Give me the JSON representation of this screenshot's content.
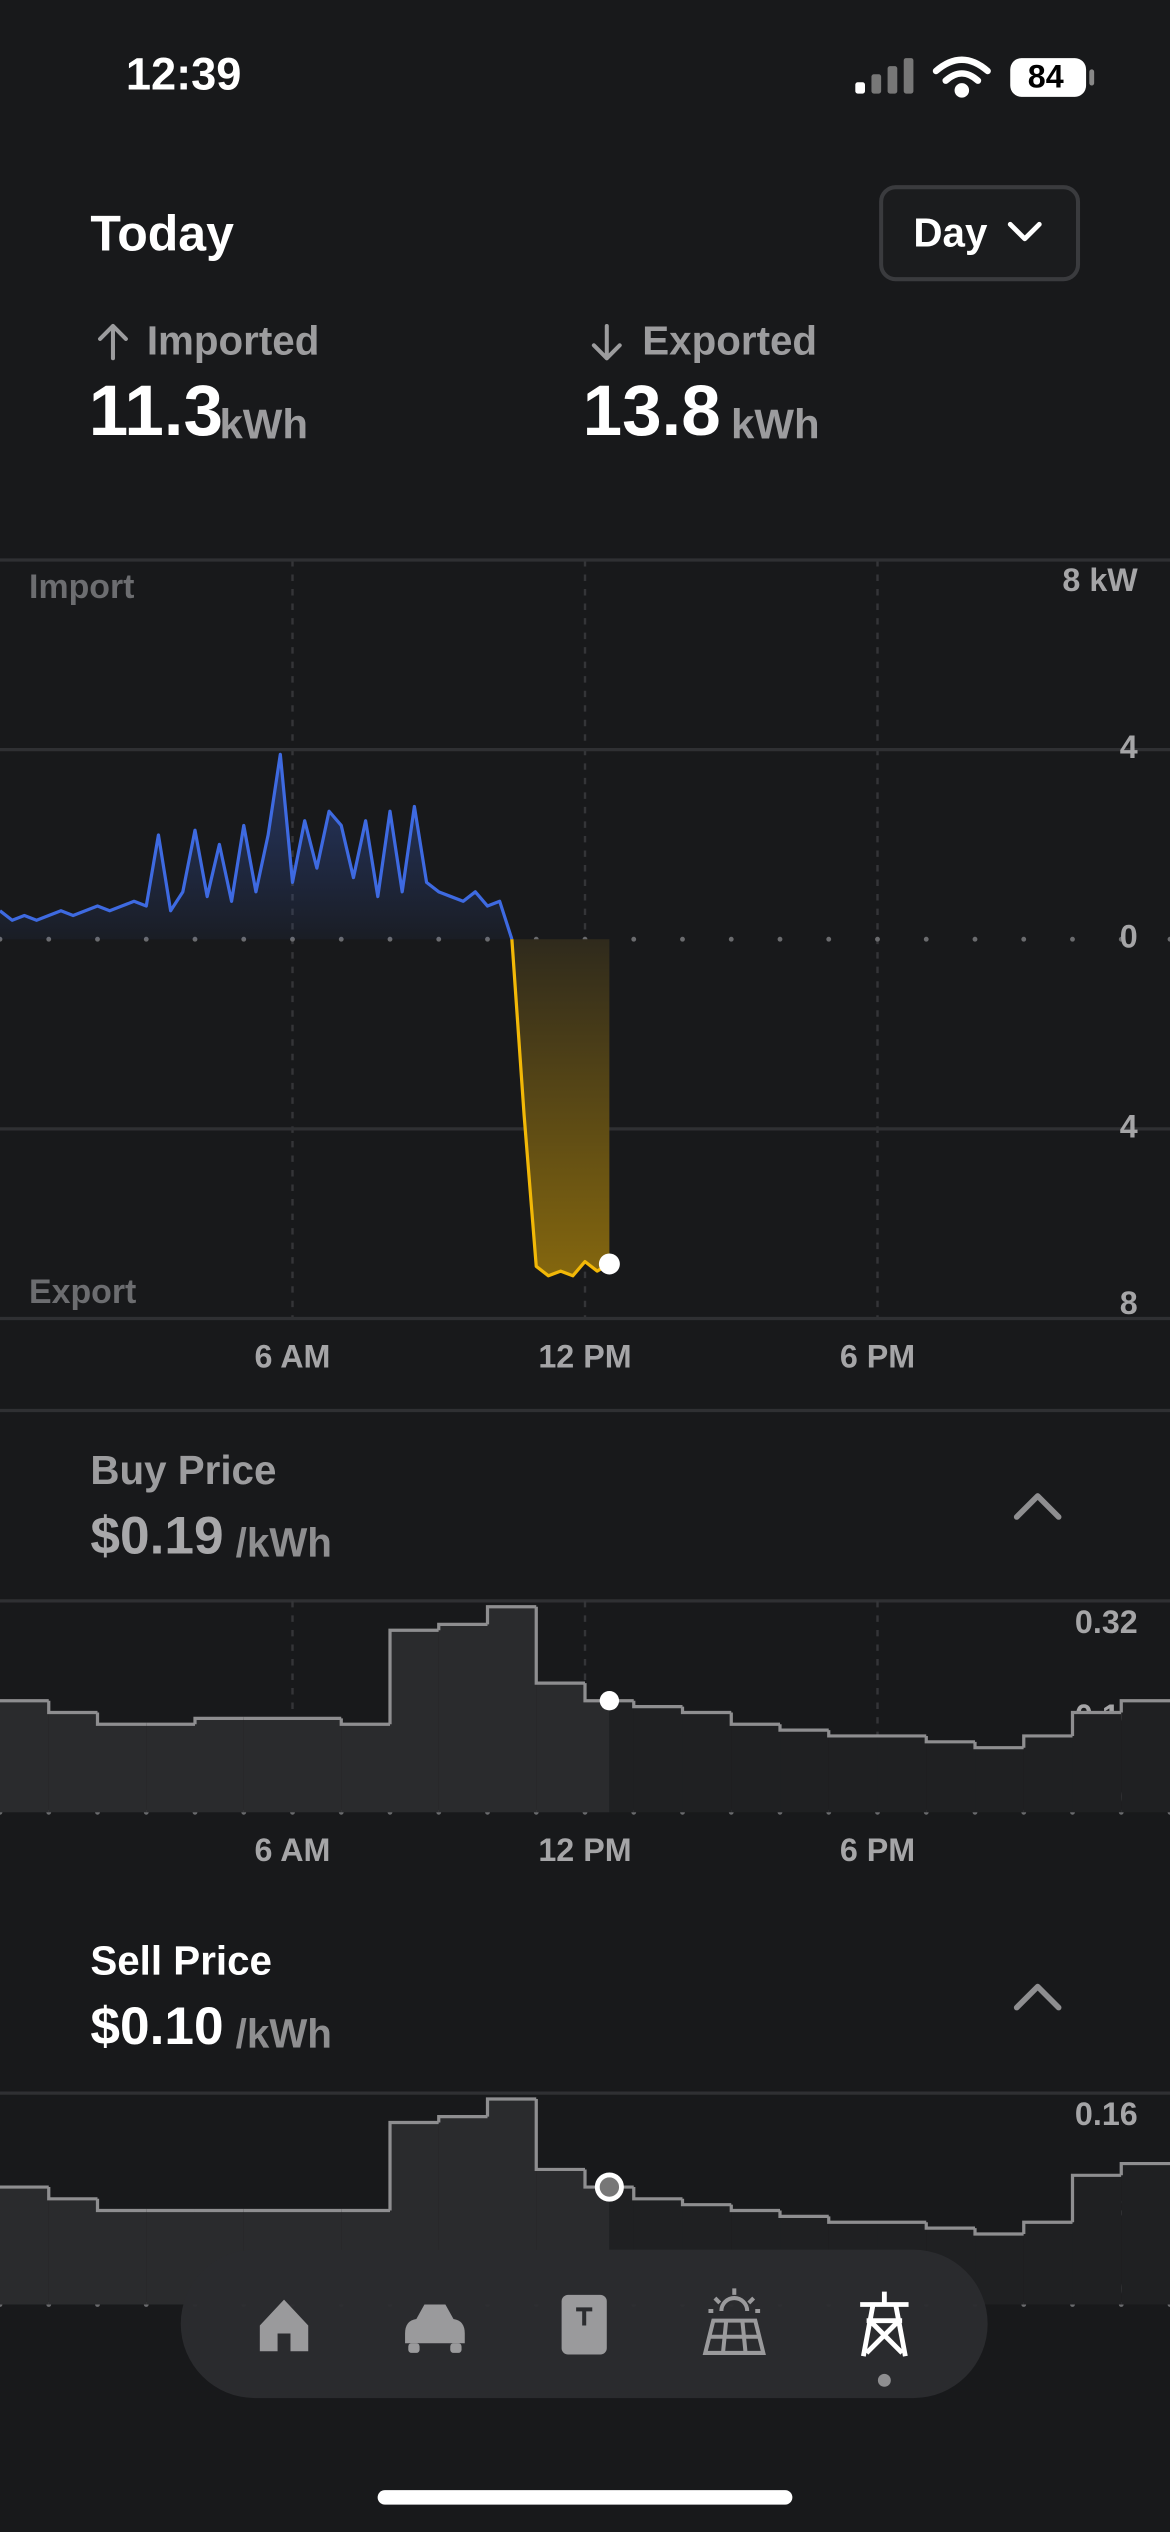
{
  "status_bar": {
    "time": "12:39",
    "battery": "84"
  },
  "header": {
    "title": "Today",
    "period": "Day"
  },
  "stats": [
    {
      "label": "Imported",
      "value": "11.3",
      "unit": "kWh"
    },
    {
      "label": "Exported",
      "value": "13.8",
      "unit": "kWh"
    }
  ],
  "chart_data": [
    {
      "type": "area",
      "x": [
        0,
        0.25,
        0.5,
        0.75,
        1,
        1.25,
        1.5,
        1.75,
        2,
        2.25,
        2.5,
        2.75,
        3,
        3.25,
        3.5,
        3.75,
        4,
        4.25,
        4.5,
        4.75,
        5,
        5.25,
        5.5,
        5.75,
        6,
        6.25,
        6.5,
        6.75,
        7,
        7.25,
        7.5,
        7.75,
        8,
        8.25,
        8.5,
        8.75,
        9,
        9.25,
        9.5,
        9.75,
        10,
        10.25,
        10.5,
        10.75,
        11,
        11.25,
        11.5,
        11.75,
        12,
        12.25,
        12.5
      ],
      "xlim": [
        0,
        24
      ],
      "xticks": [
        {
          "value": 6,
          "label": "6 AM"
        },
        {
          "value": 12,
          "label": "12 PM"
        },
        {
          "value": 18,
          "label": "6 PM"
        }
      ],
      "ylim": [
        -8,
        8
      ],
      "yticks": [
        {
          "value": 8,
          "label": "8 kW"
        },
        4,
        0,
        {
          "value": -4,
          "label": "4"
        },
        {
          "value": -8,
          "label": "8"
        }
      ],
      "grid": true,
      "series": [
        {
          "name": "Import",
          "color": "#3e6ae1",
          "values": [
            0.6,
            0.4,
            0.5,
            0.4,
            0.5,
            0.6,
            0.5,
            0.6,
            0.7,
            0.6,
            0.7,
            0.8,
            0.7,
            2.2,
            0.6,
            1.0,
            2.3,
            0.9,
            2.0,
            0.8,
            2.4,
            1.0,
            2.2,
            3.9,
            1.2,
            2.5,
            1.5,
            2.7,
            2.4,
            1.3,
            2.5,
            0.9,
            2.7,
            1.0,
            2.8,
            1.2,
            1.0,
            0.9,
            0.8,
            1.0,
            0.7,
            0.8,
            0,
            null,
            null,
            null,
            null,
            null,
            null,
            null,
            null
          ]
        },
        {
          "name": "Export",
          "color": "#f2b807",
          "values": [
            null,
            null,
            null,
            null,
            null,
            null,
            null,
            null,
            null,
            null,
            null,
            null,
            null,
            null,
            null,
            null,
            null,
            null,
            null,
            null,
            null,
            null,
            null,
            null,
            null,
            null,
            null,
            null,
            null,
            null,
            null,
            null,
            null,
            null,
            null,
            null,
            null,
            null,
            null,
            null,
            null,
            null,
            0,
            -3.7,
            -6.9,
            -7.1,
            -7.0,
            -7.1,
            -6.8,
            -7.0,
            -6.85
          ]
        }
      ]
    },
    {
      "type": "step",
      "title": "Buy Price",
      "value_label": "$0.19",
      "unit": "/kWh",
      "x": [
        0,
        1,
        2,
        3,
        4,
        5,
        6,
        7,
        8,
        9,
        10,
        11,
        12,
        13,
        14,
        15,
        16,
        17,
        18,
        19,
        20,
        21,
        22,
        23
      ],
      "values": [
        0.19,
        0.17,
        0.15,
        0.15,
        0.16,
        0.16,
        0.16,
        0.15,
        0.31,
        0.32,
        0.35,
        0.22,
        0.19,
        0.18,
        0.17,
        0.15,
        0.14,
        0.13,
        0.13,
        0.12,
        0.11,
        0.13,
        0.17,
        0.19
      ],
      "color": "#8e8e90",
      "xlim": [
        0,
        24
      ],
      "xticks": [
        {
          "value": 6,
          "label": "6 AM"
        },
        {
          "value": 12,
          "label": "12 PM"
        },
        {
          "value": 18,
          "label": "6 PM"
        }
      ],
      "ylim": [
        0,
        0.36
      ],
      "yticks": [
        0,
        0.16,
        0.32
      ],
      "grid": false
    },
    {
      "type": "step",
      "title": "Sell Price",
      "value_label": "$0.10",
      "unit": "/kWh",
      "x": [
        0,
        1,
        2,
        3,
        4,
        5,
        6,
        7,
        8,
        9,
        10,
        11,
        12,
        13,
        14,
        15,
        16,
        17,
        18,
        19,
        20,
        21,
        22,
        23
      ],
      "values": [
        0.1,
        0.09,
        0.08,
        0.08,
        0.08,
        0.08,
        0.08,
        0.08,
        0.155,
        0.16,
        0.175,
        0.115,
        0.1,
        0.09,
        0.085,
        0.08,
        0.075,
        0.07,
        0.07,
        0.065,
        0.06,
        0.07,
        0.11,
        0.12
      ],
      "color": "#8e8e90",
      "xlim": [
        0,
        24
      ],
      "ylim": [
        0,
        0.18
      ],
      "yticks": [
        0,
        0.08,
        0.16
      ],
      "grid": false
    }
  ]
}
